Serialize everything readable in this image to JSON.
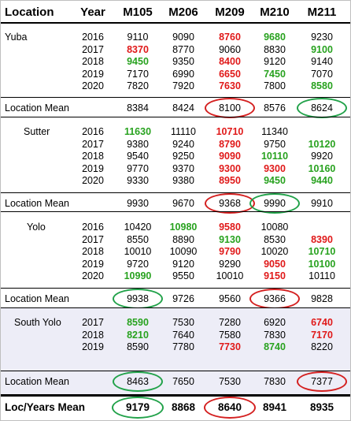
{
  "columns": [
    "Location",
    "Year",
    "M105",
    "M206",
    "M209",
    "M210",
    "M211"
  ],
  "sections": [
    {
      "location": "Yuba",
      "rows": [
        {
          "year": "2016",
          "values": [
            "9110",
            "9090",
            "8760",
            "9680",
            "9230"
          ],
          "colors": [
            "",
            "",
            "red",
            "green",
            ""
          ]
        },
        {
          "year": "2017",
          "values": [
            "8370",
            "8770",
            "9060",
            "8830",
            "9100"
          ],
          "colors": [
            "red",
            "",
            "",
            "",
            "green"
          ]
        },
        {
          "year": "2018",
          "values": [
            "9450",
            "9350",
            "8400",
            "9120",
            "9140"
          ],
          "colors": [
            "green",
            "",
            "red",
            "",
            ""
          ]
        },
        {
          "year": "2019",
          "values": [
            "7170",
            "6990",
            "6650",
            "7450",
            "7070"
          ],
          "colors": [
            "",
            "",
            "red",
            "green",
            ""
          ]
        },
        {
          "year": "2020",
          "values": [
            "7820",
            "7920",
            "7630",
            "7800",
            "8580"
          ],
          "colors": [
            "",
            "",
            "red",
            "",
            "green"
          ]
        }
      ],
      "mean_label": "Location Mean",
      "mean": [
        "8384",
        "8424",
        "8100",
        "8576",
        "8624"
      ],
      "mean_circles": [
        "",
        "",
        "red",
        "",
        "green"
      ]
    },
    {
      "location": "Sutter",
      "rows": [
        {
          "year": "2016",
          "values": [
            "11630",
            "11110",
            "10710",
            "11340",
            ""
          ],
          "colors": [
            "green",
            "",
            "red",
            "",
            ""
          ]
        },
        {
          "year": "2017",
          "values": [
            "9380",
            "9240",
            "8790",
            "9750",
            "10120"
          ],
          "colors": [
            "",
            "",
            "red",
            "",
            "green"
          ]
        },
        {
          "year": "2018",
          "values": [
            "9540",
            "9250",
            "9090",
            "10110",
            "9920"
          ],
          "colors": [
            "",
            "",
            "red",
            "green",
            ""
          ]
        },
        {
          "year": "2019",
          "values": [
            "9770",
            "9370",
            "9300",
            "9300",
            "10160"
          ],
          "colors": [
            "",
            "",
            "red",
            "red",
            "green"
          ]
        },
        {
          "year": "2020",
          "values": [
            "9330",
            "9380",
            "8950",
            "9450",
            "9440"
          ],
          "colors": [
            "",
            "",
            "red",
            "green",
            "green"
          ]
        }
      ],
      "mean_label": "Location Mean",
      "mean": [
        "9930",
        "9670",
        "9368",
        "9990",
        "9910"
      ],
      "mean_circles": [
        "",
        "",
        "red",
        "green",
        ""
      ]
    },
    {
      "location": "Yolo",
      "rows": [
        {
          "year": "2016",
          "values": [
            "10420",
            "10980",
            "9580",
            "10080",
            ""
          ],
          "colors": [
            "",
            "green",
            "red",
            "",
            ""
          ]
        },
        {
          "year": "2017",
          "values": [
            "8550",
            "8890",
            "9130",
            "8530",
            "8390"
          ],
          "colors": [
            "",
            "",
            "green",
            "",
            "red"
          ]
        },
        {
          "year": "2018",
          "values": [
            "10010",
            "10090",
            "9790",
            "10020",
            "10710"
          ],
          "colors": [
            "",
            "",
            "red",
            "",
            "green"
          ]
        },
        {
          "year": "2019",
          "values": [
            "9720",
            "9120",
            "9290",
            "9050",
            "10100"
          ],
          "colors": [
            "",
            "",
            "",
            "red",
            "green"
          ]
        },
        {
          "year": "2020",
          "values": [
            "10990",
            "9550",
            "10010",
            "9150",
            "10110"
          ],
          "colors": [
            "green",
            "",
            "",
            "red",
            ""
          ]
        }
      ],
      "mean_label": "Location Mean",
      "mean": [
        "9938",
        "9726",
        "9560",
        "9366",
        "9828"
      ],
      "mean_circles": [
        "green",
        "",
        "",
        "red",
        ""
      ]
    },
    {
      "location": "South Yolo",
      "rows": [
        {
          "year": "2017",
          "values": [
            "8590",
            "7530",
            "7280",
            "6920",
            "6740"
          ],
          "colors": [
            "green",
            "",
            "",
            "",
            "red"
          ]
        },
        {
          "year": "2018",
          "values": [
            "8210",
            "7640",
            "7580",
            "7830",
            "7170"
          ],
          "colors": [
            "green",
            "",
            "",
            "",
            "red"
          ]
        },
        {
          "year": "2019",
          "values": [
            "8590",
            "7780",
            "7730",
            "8740",
            "8220"
          ],
          "colors": [
            "",
            "",
            "red",
            "green",
            ""
          ]
        }
      ],
      "mean_label": "Location Mean",
      "mean": [
        "8463",
        "7650",
        "7530",
        "7830",
        "7377"
      ],
      "mean_circles": [
        "green",
        "",
        "",
        "",
        "red"
      ]
    }
  ],
  "overall": {
    "label": "Loc/Years Mean",
    "values": [
      "9179",
      "8868",
      "8640",
      "8941",
      "8935"
    ],
    "circles": [
      "green",
      "",
      "red",
      "",
      ""
    ]
  }
}
